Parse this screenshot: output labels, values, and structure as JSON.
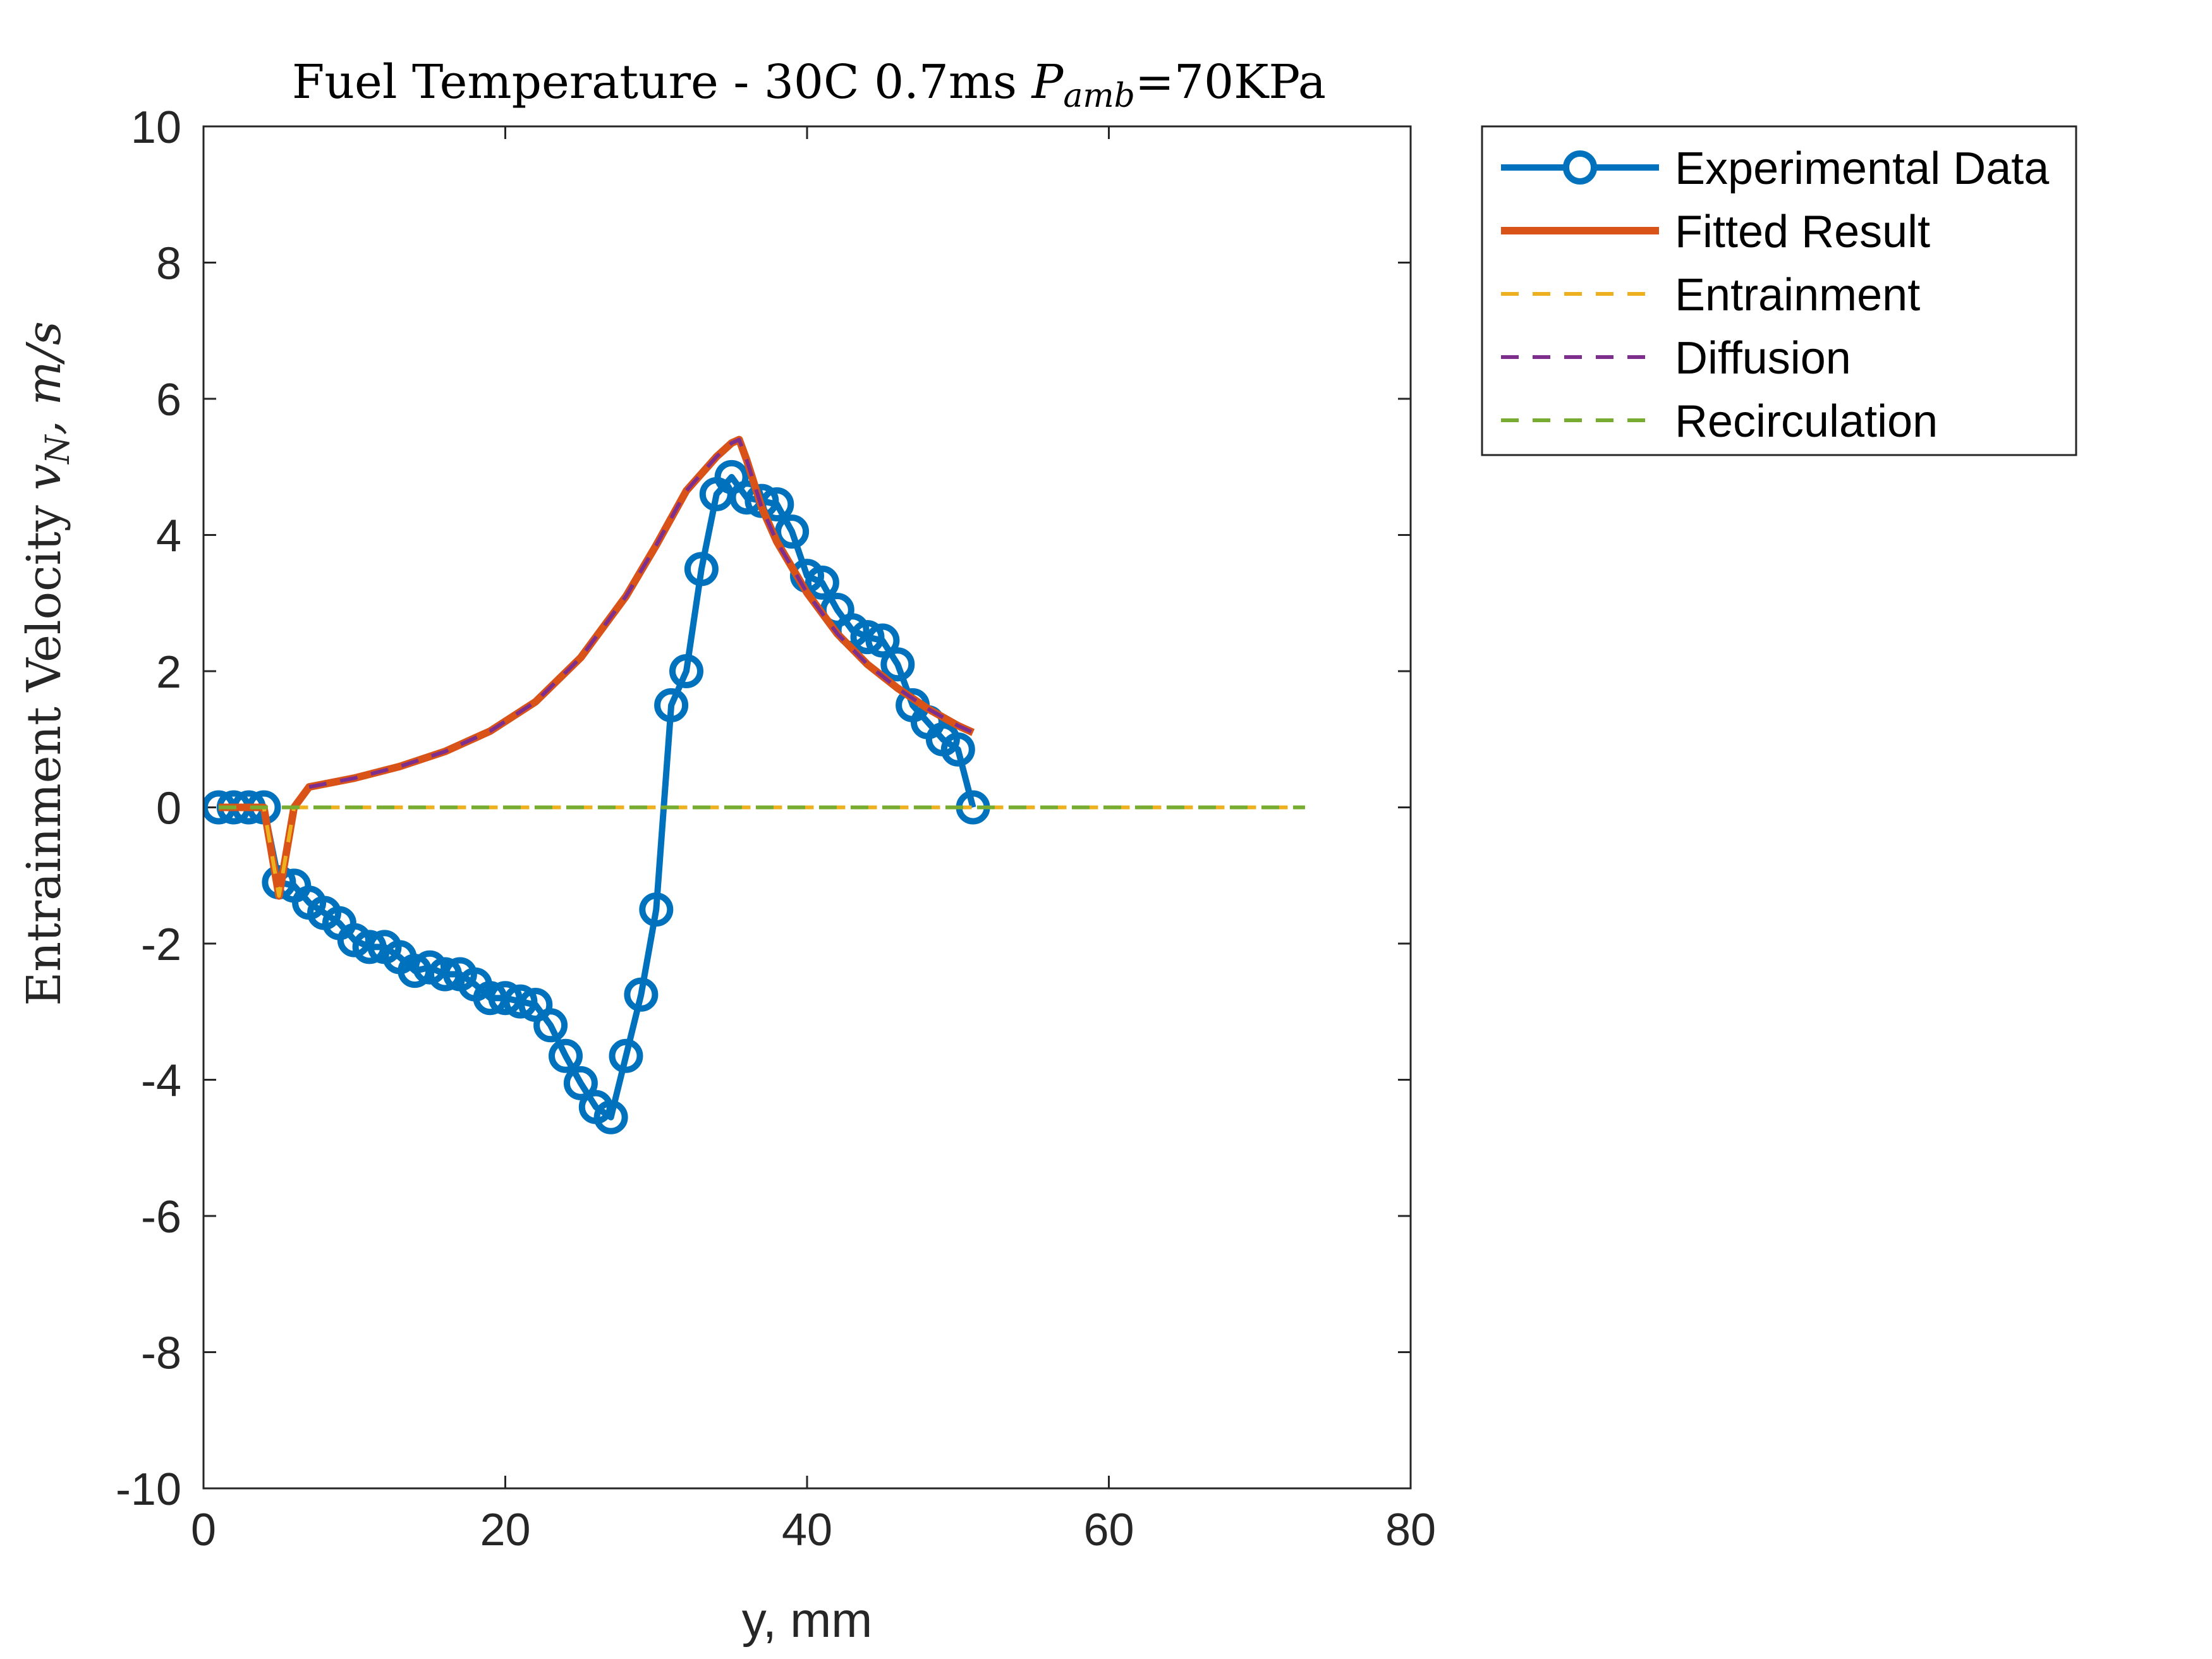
{
  "chart_data": {
    "type": "line",
    "title_prefix": "Fuel Temperature - 30C 0.7ms ",
    "title_var": "P",
    "title_sub": "amb",
    "title_suffix": "=70KPa",
    "xlabel": "y, mm",
    "ylabel_prefix": "Entrainment Velocity ",
    "ylabel_var": "v",
    "ylabel_sub": "N",
    "ylabel_suffix": ", m/s",
    "xlim": [
      0,
      80
    ],
    "ylim": [
      -10,
      10
    ],
    "x_ticks": [
      0,
      20,
      40,
      60,
      80
    ],
    "y_ticks": [
      -10,
      -8,
      -6,
      -4,
      -2,
      0,
      2,
      4,
      6,
      8,
      10
    ],
    "grid": false,
    "legend_position": "outside-right-top",
    "colors": {
      "experimental": "#0072BD",
      "fitted": "#D95319",
      "entrainment": "#EDB120",
      "diffusion": "#7E2F8E",
      "recirculation": "#77AC30"
    },
    "series": [
      {
        "name": "Experimental Data",
        "style": "solid-markers",
        "x": [
          1,
          2,
          3,
          4,
          5,
          6,
          7,
          8,
          9,
          10,
          11,
          12,
          13,
          14,
          15,
          16,
          17,
          18,
          19,
          20,
          21,
          22,
          23,
          24,
          25,
          26,
          27,
          28,
          29,
          30,
          31,
          32,
          33,
          34,
          35,
          36,
          37,
          38,
          39,
          40,
          41,
          42,
          43,
          44,
          45,
          46,
          47,
          48,
          49,
          50,
          51
        ],
        "values": [
          0,
          0,
          0,
          0,
          -1.1,
          -1.15,
          -1.4,
          -1.55,
          -1.7,
          -1.95,
          -2.05,
          -2.05,
          -2.2,
          -2.4,
          -2.35,
          -2.45,
          -2.45,
          -2.6,
          -2.8,
          -2.8,
          -2.85,
          -2.9,
          -3.2,
          -3.65,
          -4.05,
          -4.4,
          -4.55,
          -3.65,
          -2.75,
          -1.5,
          1.5,
          2.0,
          3.5,
          4.6,
          4.85,
          4.55,
          4.5,
          4.45,
          4.05,
          3.4,
          3.3,
          2.9,
          2.6,
          2.5,
          2.45,
          2.1,
          1.5,
          1.25,
          1.0,
          0.85,
          0
        ]
      },
      {
        "name": "Fitted Result",
        "style": "solid",
        "x": [
          1,
          2,
          3,
          4,
          5,
          6,
          7,
          10,
          13,
          16,
          19,
          22,
          25,
          28,
          30,
          32,
          34,
          35,
          35.5,
          36,
          37,
          38,
          40,
          42,
          44,
          46,
          48,
          50,
          51
        ],
        "values": [
          0,
          0,
          0,
          0,
          -1.3,
          0,
          0.3,
          0.43,
          0.6,
          0.82,
          1.12,
          1.55,
          2.2,
          3.1,
          3.85,
          4.65,
          5.15,
          5.35,
          5.4,
          5.1,
          4.4,
          3.9,
          3.15,
          2.55,
          2.1,
          1.75,
          1.45,
          1.2,
          1.1
        ]
      },
      {
        "name": "Entrainment",
        "style": "dashed",
        "x": [
          1,
          2,
          3,
          4,
          5,
          6,
          7,
          10,
          20,
          30,
          40,
          50,
          60,
          73
        ],
        "values": [
          0,
          0,
          0,
          0,
          -1.3,
          0,
          0,
          0,
          0,
          0,
          0,
          0,
          0,
          0
        ]
      },
      {
        "name": "Diffusion",
        "style": "dashed",
        "x": [
          7,
          10,
          13,
          16,
          19,
          22,
          25,
          28,
          30,
          32,
          34,
          35,
          35.5,
          36,
          37,
          38,
          40,
          42,
          44,
          46,
          48,
          50,
          51
        ],
        "values": [
          0.3,
          0.43,
          0.6,
          0.82,
          1.12,
          1.55,
          2.2,
          3.1,
          3.85,
          4.65,
          5.15,
          5.35,
          5.4,
          5.1,
          4.4,
          3.9,
          3.15,
          2.55,
          2.1,
          1.75,
          1.45,
          1.2,
          1.1
        ]
      },
      {
        "name": "Recirculation",
        "style": "dashed",
        "x": [
          1,
          73
        ],
        "values": [
          0,
          0
        ]
      }
    ]
  }
}
